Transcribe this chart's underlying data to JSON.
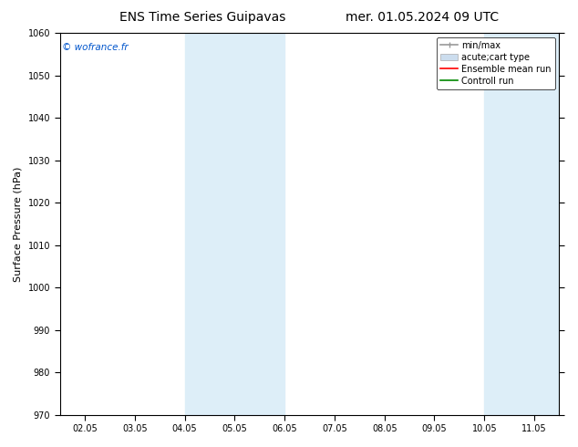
{
  "title": "ENS Time Series Guipavas",
  "title_right": "mer. 01.05.2024 09 UTC",
  "ylabel": "Surface Pressure (hPa)",
  "ylim": [
    970,
    1060
  ],
  "yticks": [
    970,
    980,
    990,
    1000,
    1010,
    1020,
    1030,
    1040,
    1050,
    1060
  ],
  "xlabels": [
    "02.05",
    "03.05",
    "04.05",
    "05.05",
    "06.05",
    "07.05",
    "08.05",
    "09.05",
    "10.05",
    "11.05"
  ],
  "xvalues": [
    0,
    1,
    2,
    3,
    4,
    5,
    6,
    7,
    8,
    9
  ],
  "shaded_bands": [
    {
      "xmin": 2.0,
      "xmax": 3.0
    },
    {
      "xmin": 3.0,
      "xmax": 4.0
    },
    {
      "xmin": 8.0,
      "xmax": 9.0
    },
    {
      "xmin": 9.0,
      "xmax": 9.5
    }
  ],
  "shade_color": "#ddeef8",
  "watermark": "© wofrance.fr",
  "watermark_color": "#0055cc",
  "legend_items": [
    {
      "label": "min/max",
      "color": "#999999",
      "lw": 1.2,
      "linestyle": "-",
      "type": "errbar"
    },
    {
      "label": "acute;cart type",
      "color": "#ccddee",
      "lw": 6,
      "linestyle": "-",
      "type": "band"
    },
    {
      "label": "Ensemble mean run",
      "color": "#ff0000",
      "lw": 1.2,
      "linestyle": "-",
      "type": "line"
    },
    {
      "label": "Controll run",
      "color": "#008800",
      "lw": 1.2,
      "linestyle": "-",
      "type": "line"
    }
  ],
  "bg_color": "#ffffff",
  "plot_bg_color": "#ffffff",
  "title_fontsize": 10,
  "tick_fontsize": 7,
  "ylabel_fontsize": 8,
  "legend_fontsize": 7
}
